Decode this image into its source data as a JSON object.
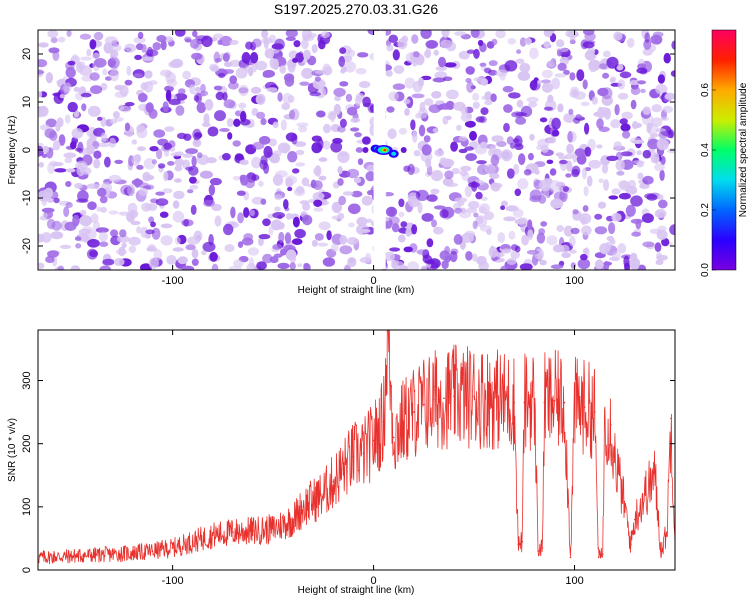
{
  "title": "S197.2025.270.03.31.G26",
  "colors": {
    "line": "#e8302c",
    "spectro_light": "#d8c4f2",
    "spectro_mid": "#a06ae6",
    "spectro_dark": "#6a18d8",
    "spectro_gap": "#ffffff",
    "colorbar_stops": [
      "#7a00e0",
      "#2a00ff",
      "#0066ff",
      "#00ddee",
      "#00ff66",
      "#ccee00",
      "#ffaa00",
      "#ff2000",
      "#ff0060"
    ]
  },
  "chart_data": [
    {
      "type": "heatmap",
      "name": "spectrogram",
      "xlabel": "Height of straight line (km)",
      "ylabel": "Frequency (Hz)",
      "xlim": [
        -167,
        150
      ],
      "ylim": [
        -25,
        25
      ],
      "xticks": [
        -100,
        0,
        100
      ],
      "xtick_labels": [
        "-100",
        "0",
        "100"
      ],
      "yticks": [
        -20,
        -10,
        0,
        10,
        20
      ],
      "ytick_labels": [
        "-20",
        "-10",
        "0",
        "10",
        "20"
      ],
      "gap_x_range": [
        0,
        6
      ],
      "peak": {
        "x": 5,
        "y": 0,
        "amplitude": 0.55
      },
      "colorbar": {
        "label": "Normalized spectral amplitude",
        "range": [
          0.0,
          0.8
        ],
        "ticks": [
          0.0,
          0.2,
          0.4,
          0.6
        ],
        "tick_labels": [
          "0.0",
          "0.2",
          "0.4",
          "0.6"
        ]
      }
    },
    {
      "type": "line",
      "name": "snr",
      "xlabel": "Height of straight line (km)",
      "ylabel": "SNR (10 * v/v)",
      "xlim": [
        -167,
        150
      ],
      "ylim": [
        0,
        380
      ],
      "xticks": [
        -100,
        0,
        100
      ],
      "xtick_labels": [
        "-100",
        "0",
        "100"
      ],
      "yticks": [
        0,
        100,
        200,
        300
      ],
      "ytick_labels": [
        "0",
        "100",
        "200",
        "300"
      ],
      "series": [
        {
          "name": "SNR",
          "x": [
            -167,
            -150,
            -130,
            -120,
            -110,
            -100,
            -90,
            -80,
            -70,
            -60,
            -50,
            -40,
            -35,
            -30,
            -25,
            -20,
            -15,
            -10,
            -5,
            0,
            5,
            7,
            10,
            15,
            20,
            25,
            30,
            35,
            40,
            50,
            60,
            70,
            72,
            74,
            75,
            80,
            82,
            84,
            85,
            90,
            95,
            98,
            100,
            105,
            110,
            112,
            114,
            115,
            118,
            120,
            125,
            128,
            130,
            135,
            140,
            143,
            146,
            148,
            150
          ],
          "values": [
            20,
            22,
            25,
            27,
            30,
            35,
            45,
            55,
            60,
            62,
            65,
            80,
            100,
            110,
            120,
            140,
            160,
            180,
            185,
            205,
            235,
            380,
            210,
            235,
            250,
            262,
            270,
            272,
            275,
            275,
            272,
            265,
            40,
            45,
            265,
            270,
            30,
            35,
            265,
            268,
            265,
            20,
            260,
            258,
            250,
            20,
            25,
            240,
            230,
            180,
            100,
            40,
            80,
            120,
            150,
            30,
            60,
            240,
            50
          ],
          "color": "#e8302c"
        }
      ]
    }
  ]
}
